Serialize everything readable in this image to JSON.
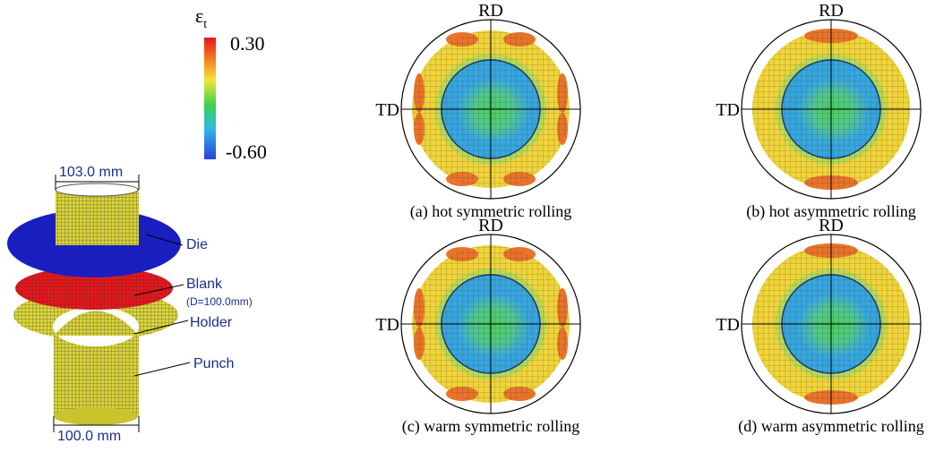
{
  "model": {
    "colorbar": {
      "symbol": "ε",
      "subscript": "t",
      "max": "0.30",
      "min": "-0.60"
    },
    "top_dimension": "103.0 mm",
    "bottom_dimension": "100.0 mm",
    "parts": {
      "die": "Die",
      "blank": "Blank",
      "blank_note": "(D=100.0mm)",
      "holder": "Holder",
      "punch": "Punch"
    }
  },
  "panels": [
    {
      "rd": "RD",
      "td": "TD",
      "caption": "(a) hot symmetric rolling"
    },
    {
      "rd": "RD",
      "td": "TD",
      "caption": "(b) hot asymmetric rolling"
    },
    {
      "rd": "RD",
      "td": "TD",
      "caption": "(c) warm symmetric rolling"
    },
    {
      "rd": "RD",
      "td": "TD",
      "caption": "(d) warm asymmetric rolling"
    }
  ]
}
